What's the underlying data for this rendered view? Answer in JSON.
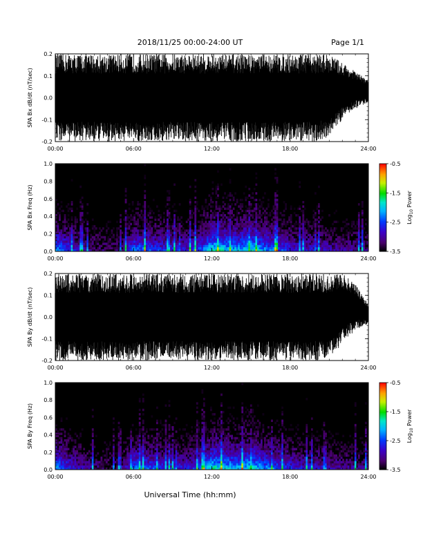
{
  "header": {
    "title": "2018/11/25  00:00-24:00 UT",
    "page": "Page 1/1"
  },
  "footer": {
    "xlabel": "Universal Time (hh:mm)"
  },
  "colors": {
    "background": "#ffffff",
    "plot_background": "#000000",
    "trace": "#000000"
  },
  "chart_data": [
    {
      "type": "line",
      "panel": "bx-waveform",
      "ylabel": "SPA Bx dB/dt (nT/sec)",
      "ylim": [
        -0.2,
        0.2
      ],
      "yticks": [
        "0.2",
        "0.1",
        "0.0",
        "-0.1",
        "-0.2"
      ],
      "yticks_values": [
        0.2,
        0.1,
        0.0,
        -0.1,
        -0.2
      ],
      "xlim": [
        0,
        24
      ],
      "xticks": [
        "00:00",
        "06:00",
        "12:00",
        "18:00",
        "24:00"
      ],
      "xticks_values": [
        0,
        6,
        12,
        18,
        24
      ],
      "series": [
        {
          "x": [
            0,
            1,
            2,
            3,
            4,
            5,
            6,
            7,
            8,
            9,
            10,
            11,
            12,
            13,
            14,
            15,
            16,
            17,
            18,
            19,
            20,
            21,
            22,
            23,
            24
          ],
          "max": [
            0.2,
            0.2,
            0.2,
            0.2,
            0.2,
            0.2,
            0.2,
            0.2,
            0.2,
            0.2,
            0.2,
            0.2,
            0.2,
            0.2,
            0.2,
            0.2,
            0.2,
            0.2,
            0.2,
            0.2,
            0.2,
            0.2,
            0.16,
            0.12,
            0.08
          ],
          "min": [
            -0.2,
            -0.2,
            -0.2,
            -0.2,
            -0.2,
            -0.2,
            -0.2,
            -0.2,
            -0.2,
            -0.2,
            -0.2,
            -0.2,
            -0.2,
            -0.2,
            -0.2,
            -0.2,
            -0.2,
            -0.2,
            -0.2,
            -0.2,
            -0.2,
            -0.18,
            -0.1,
            -0.05,
            -0.02
          ]
        }
      ]
    },
    {
      "type": "heatmap",
      "panel": "bx-spectrogram",
      "ylabel": "SPA Bx Freq (Hz)",
      "ylim": [
        0.0,
        1.0
      ],
      "yticks": [
        "1.0",
        "0.8",
        "0.6",
        "0.4",
        "0.2",
        "0.0"
      ],
      "yticks_values": [
        1.0,
        0.8,
        0.6,
        0.4,
        0.2,
        0.0
      ],
      "xlim": [
        0,
        24
      ],
      "xticks": [
        "00:00",
        "06:00",
        "12:00",
        "18:00",
        "24:00"
      ],
      "xticks_values": [
        0,
        6,
        12,
        18,
        24
      ],
      "colorbar": {
        "label": "Log",
        "label_sub": "10",
        "label_rest": " Power",
        "range": [
          -3.5,
          -0.5
        ],
        "ticks": [
          "-0.5",
          "-1.5",
          "-2.5",
          "-3.5"
        ],
        "ticks_values": [
          -0.5,
          -1.5,
          -2.5,
          -3.5
        ]
      }
    },
    {
      "type": "line",
      "panel": "by-waveform",
      "ylabel": "SPA By dB/dt (nT/sec)",
      "ylim": [
        -0.2,
        0.2
      ],
      "yticks": [
        "0.2",
        "0.1",
        "0.0",
        "-0.1",
        "-0.2"
      ],
      "yticks_values": [
        0.2,
        0.1,
        0.0,
        -0.1,
        -0.2
      ],
      "xlim": [
        0,
        24
      ],
      "xticks": [
        "00:00",
        "06:00",
        "12:00",
        "18:00",
        "24:00"
      ],
      "xticks_values": [
        0,
        6,
        12,
        18,
        24
      ],
      "series": [
        {
          "x": [
            0,
            1,
            2,
            3,
            4,
            5,
            6,
            7,
            8,
            9,
            10,
            11,
            12,
            13,
            14,
            15,
            16,
            17,
            18,
            19,
            20,
            21,
            22,
            23,
            24
          ],
          "max": [
            0.2,
            0.2,
            0.2,
            0.2,
            0.2,
            0.2,
            0.2,
            0.2,
            0.2,
            0.2,
            0.2,
            0.2,
            0.2,
            0.2,
            0.2,
            0.2,
            0.2,
            0.2,
            0.2,
            0.2,
            0.2,
            0.2,
            0.2,
            0.15,
            0.06
          ],
          "min": [
            -0.2,
            -0.2,
            -0.2,
            -0.2,
            -0.2,
            -0.2,
            -0.2,
            -0.2,
            -0.2,
            -0.2,
            -0.2,
            -0.2,
            -0.2,
            -0.2,
            -0.2,
            -0.2,
            -0.2,
            -0.2,
            -0.2,
            -0.2,
            -0.2,
            -0.2,
            -0.12,
            -0.06,
            -0.03
          ]
        }
      ]
    },
    {
      "type": "heatmap",
      "panel": "by-spectrogram",
      "ylabel": "SPA By Freq (Hz)",
      "ylim": [
        0.0,
        1.0
      ],
      "yticks": [
        "1.0",
        "0.8",
        "0.6",
        "0.4",
        "0.2",
        "0.0"
      ],
      "yticks_values": [
        1.0,
        0.8,
        0.6,
        0.4,
        0.2,
        0.0
      ],
      "xlim": [
        0,
        24
      ],
      "xticks": [
        "00:00",
        "06:00",
        "12:00",
        "18:00",
        "24:00"
      ],
      "xticks_values": [
        0,
        6,
        12,
        18,
        24
      ],
      "colorbar": {
        "label": "Log",
        "label_sub": "10",
        "label_rest": " Power",
        "range": [
          -3.5,
          -0.5
        ],
        "ticks": [
          "-0.5",
          "-1.5",
          "-2.5",
          "-3.5"
        ],
        "ticks_values": [
          -0.5,
          -1.5,
          -2.5,
          -3.5
        ]
      }
    }
  ]
}
